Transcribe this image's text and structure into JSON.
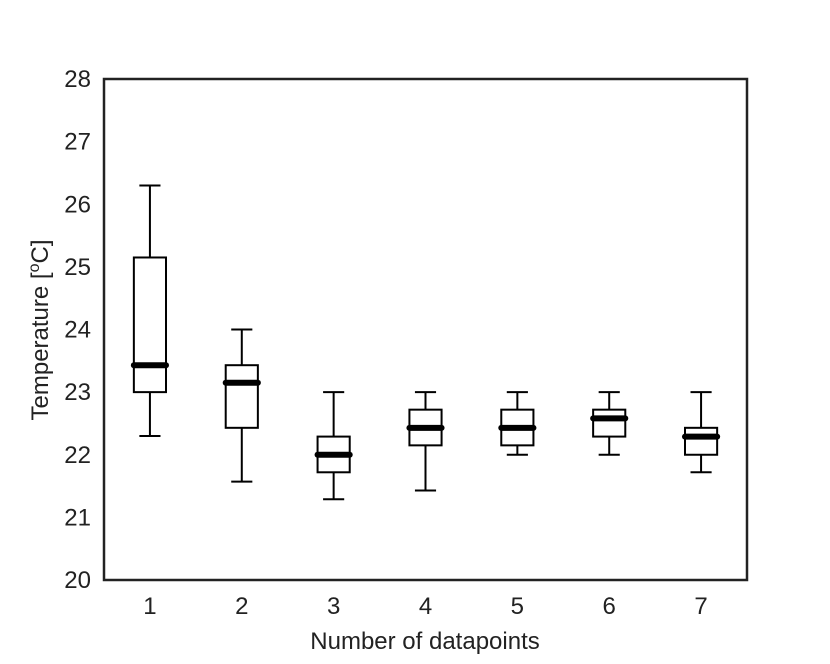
{
  "chart_data": {
    "type": "box",
    "title": "",
    "xlabel": "Number of datapoints",
    "ylabel": {
      "prefix": "Temperature [",
      "superscript": "o",
      "suffix": "C]"
    },
    "ylim": [
      20,
      28
    ],
    "yticks": [
      20,
      21,
      22,
      23,
      24,
      25,
      26,
      27,
      28
    ],
    "categories": [
      "1",
      "2",
      "3",
      "4",
      "5",
      "6",
      "7"
    ],
    "boxes": [
      {
        "category": "1",
        "whisker_low": 22.3,
        "q1": 23.0,
        "median": 23.43,
        "q3": 25.15,
        "whisker_high": 26.3
      },
      {
        "category": "2",
        "whisker_low": 21.57,
        "q1": 22.43,
        "median": 23.15,
        "q3": 23.43,
        "whisker_high": 24.0
      },
      {
        "category": "3",
        "whisker_low": 21.29,
        "q1": 21.72,
        "median": 22.0,
        "q3": 22.29,
        "whisker_high": 23.0
      },
      {
        "category": "4",
        "whisker_low": 21.43,
        "q1": 22.15,
        "median": 22.43,
        "q3": 22.72,
        "whisker_high": 23.0
      },
      {
        "category": "5",
        "whisker_low": 22.0,
        "q1": 22.15,
        "median": 22.43,
        "q3": 22.72,
        "whisker_high": 23.0
      },
      {
        "category": "6",
        "whisker_low": 22.0,
        "q1": 22.29,
        "median": 22.58,
        "q3": 22.72,
        "whisker_high": 23.0
      },
      {
        "category": "7",
        "whisker_low": 21.72,
        "q1": 22.0,
        "median": 22.29,
        "q3": 22.43,
        "whisker_high": 23.0
      }
    ],
    "grid": false,
    "legend": "none",
    "colors": {
      "box": "#000000",
      "median": "#000000",
      "axis": "#222222",
      "background": "#ffffff"
    }
  }
}
